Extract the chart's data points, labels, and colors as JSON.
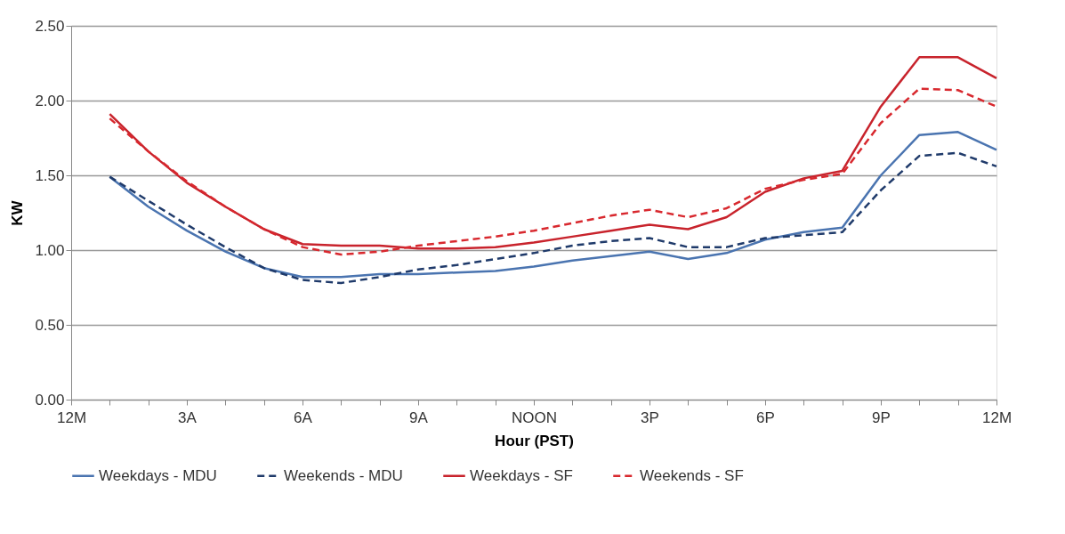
{
  "chart_data": {
    "type": "line",
    "xlabel": "Hour (PST)",
    "ylabel": "KW",
    "categories": [
      "12M",
      null,
      null,
      "3A",
      null,
      null,
      "6A",
      null,
      null,
      "9A",
      null,
      null,
      "NOON",
      null,
      null,
      "3P",
      null,
      null,
      "6P",
      null,
      null,
      "9P",
      null,
      null,
      "12M"
    ],
    "ylim": [
      0,
      2.5
    ],
    "yticks": [
      {
        "value": 0,
        "label": "0.00"
      },
      {
        "value": 0.5,
        "label": "0.50"
      },
      {
        "value": 1,
        "label": "1.00"
      },
      {
        "value": 1.5,
        "label": "1.50"
      },
      {
        "value": 2,
        "label": "2.00"
      },
      {
        "value": 2.5,
        "label": "2.50"
      }
    ],
    "grid": "y",
    "legend": "bottom",
    "marker": "none",
    "series": [
      {
        "name": "Weekdays - MDU",
        "color": "#4a74b0",
        "line_style": "solid",
        "values": [
          null,
          1.49,
          1.29,
          1.13,
          0.99,
          0.88,
          0.82,
          0.82,
          0.84,
          0.84,
          0.85,
          0.86,
          0.89,
          0.93,
          0.96,
          0.99,
          0.94,
          0.98,
          1.07,
          1.12,
          1.15,
          1.5,
          1.77,
          1.79,
          1.67
        ]
      },
      {
        "name": "Weekends - MDU",
        "color": "#1f3a6a",
        "line_style": "dashed",
        "values": [
          null,
          1.49,
          1.33,
          1.17,
          1.02,
          0.88,
          0.8,
          0.78,
          0.82,
          0.87,
          0.9,
          0.94,
          0.98,
          1.03,
          1.06,
          1.08,
          1.02,
          1.02,
          1.08,
          1.1,
          1.12,
          1.4,
          1.63,
          1.65,
          1.56
        ]
      },
      {
        "name": "Weekdays - SF",
        "color": "#c8232c",
        "line_style": "solid",
        "values": [
          null,
          1.91,
          1.66,
          1.45,
          1.29,
          1.14,
          1.04,
          1.03,
          1.03,
          1.01,
          1.01,
          1.02,
          1.05,
          1.09,
          1.13,
          1.17,
          1.14,
          1.22,
          1.39,
          1.48,
          1.53,
          1.96,
          2.29,
          2.29,
          2.15
        ]
      },
      {
        "name": "Weekends - SF",
        "color": "#d8282e",
        "line_style": "dashed",
        "values": [
          null,
          1.88,
          1.66,
          1.46,
          1.29,
          1.14,
          1.02,
          0.97,
          0.99,
          1.03,
          1.06,
          1.09,
          1.13,
          1.18,
          1.23,
          1.27,
          1.22,
          1.28,
          1.41,
          1.47,
          1.51,
          1.85,
          2.08,
          2.07,
          1.96
        ]
      }
    ]
  }
}
